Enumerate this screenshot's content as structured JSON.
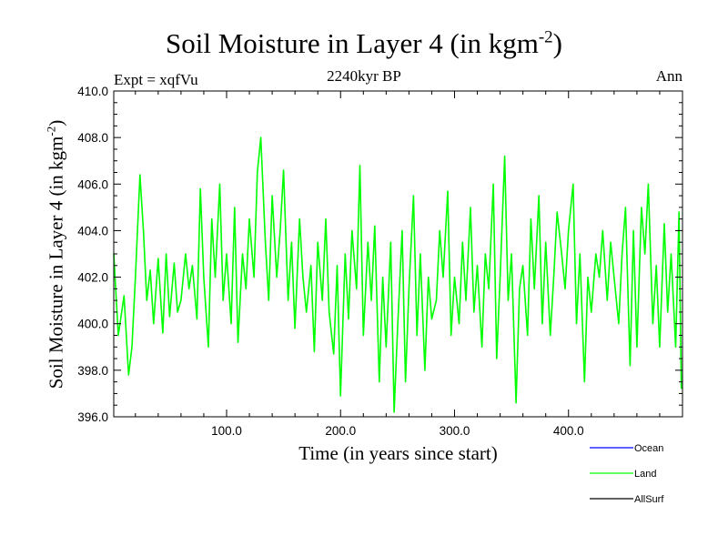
{
  "chart_data": {
    "type": "line",
    "title_main": "Soil Moisture in Layer 4 (in kgm",
    "title_sup": "-2",
    "title_close": ")",
    "subtitle": "2240kyr BP",
    "left_label": "Expt = xqfVu",
    "right_label": "Ann",
    "xlabel": "Time (in years since start)",
    "ylabel_main": "Soil Moisture in Layer 4 (in kgm",
    "ylabel_sup": "-2",
    "ylabel_close": ")",
    "xlim": [
      1,
      500
    ],
    "ylim": [
      396.0,
      410.0
    ],
    "xticks": [
      100,
      200,
      300,
      400
    ],
    "xtick_labels": [
      "100.0",
      "200.0",
      "300.0",
      "400.0"
    ],
    "yticks": [
      396,
      398,
      400,
      402,
      404,
      406,
      408,
      410
    ],
    "ytick_labels": [
      "396.0",
      "398.0",
      "400.0",
      "402.0",
      "404.0",
      "406.0",
      "408.0",
      "410.0"
    ],
    "legend": [
      {
        "name": "Ocean",
        "color": "#0000ff"
      },
      {
        "name": "Land",
        "color": "#00ff00"
      },
      {
        "name": "AllSurf",
        "color": "#000000"
      }
    ],
    "series": [
      {
        "name": "Land",
        "color": "#00ff00",
        "x": [
          1,
          5,
          10,
          14,
          17,
          20,
          24,
          27,
          30,
          33,
          36,
          40,
          44,
          47,
          50,
          54,
          57,
          60,
          64,
          67,
          70,
          74,
          77,
          80,
          84,
          87,
          90,
          94,
          97,
          100,
          104,
          107,
          110,
          114,
          117,
          120,
          124,
          127,
          130,
          134,
          137,
          140,
          144,
          147,
          150,
          154,
          157,
          160,
          164,
          167,
          170,
          174,
          177,
          180,
          184,
          187,
          190,
          194,
          197,
          200,
          204,
          207,
          210,
          214,
          217,
          220,
          224,
          227,
          230,
          234,
          237,
          240,
          244,
          247,
          250,
          254,
          257,
          260,
          264,
          267,
          270,
          274,
          277,
          280,
          284,
          287,
          290,
          294,
          297,
          300,
          304,
          307,
          310,
          314,
          317,
          320,
          324,
          327,
          330,
          334,
          337,
          340,
          344,
          347,
          350,
          354,
          357,
          360,
          364,
          367,
          370,
          374,
          377,
          380,
          384,
          387,
          390,
          394,
          397,
          400,
          404,
          407,
          410,
          414,
          417,
          420,
          424,
          427,
          430,
          434,
          437,
          440,
          444,
          447,
          450,
          454,
          457,
          460,
          464,
          467,
          470,
          474,
          477,
          480,
          484,
          487,
          490,
          494,
          497,
          499
        ],
        "values": [
          403.0,
          399.5,
          401.2,
          397.8,
          399.0,
          402.0,
          406.4,
          404.0,
          401.0,
          402.3,
          400.0,
          402.8,
          399.6,
          403.0,
          400.3,
          402.6,
          400.5,
          401.0,
          403.0,
          401.5,
          402.5,
          400.2,
          405.8,
          402.0,
          399.0,
          404.5,
          402.0,
          406.0,
          401.0,
          403.0,
          400.0,
          405.0,
          399.2,
          403.0,
          401.5,
          404.5,
          402.0,
          406.5,
          408.0,
          403.5,
          401.0,
          405.5,
          402.0,
          404.0,
          406.6,
          401.0,
          403.5,
          399.8,
          404.5,
          402.0,
          400.5,
          402.5,
          398.8,
          403.5,
          401.0,
          404.5,
          400.5,
          398.7,
          402.5,
          396.9,
          403.0,
          400.2,
          404.0,
          401.5,
          406.8,
          399.5,
          403.5,
          401.0,
          404.2,
          397.5,
          402.0,
          399.0,
          403.5,
          396.2,
          399.8,
          404.0,
          397.5,
          401.5,
          405.5,
          399.5,
          403.0,
          398.0,
          402.0,
          400.2,
          401.0,
          404.0,
          402.0,
          405.7,
          399.5,
          402.0,
          400.0,
          403.5,
          401.0,
          405.0,
          400.5,
          402.5,
          399.0,
          403.0,
          401.5,
          406.0,
          398.5,
          402.0,
          407.2,
          401.0,
          403.0,
          396.6,
          401.5,
          402.5,
          399.5,
          404.5,
          401.5,
          405.5,
          400.0,
          403.5,
          399.5,
          402.0,
          404.8,
          403.0,
          401.5,
          404.0,
          406.0,
          400.0,
          403.0,
          397.5,
          402.0,
          400.5,
          403.0,
          402.0,
          404.0,
          401.0,
          403.5,
          402.0,
          400.0,
          403.0,
          405.0,
          398.2,
          404.0,
          399.0,
          405.0,
          403.0,
          406.0,
          400.0,
          402.5,
          399.0,
          404.3,
          400.5,
          403.0,
          399.0,
          404.8,
          397.2
        ]
      }
    ]
  }
}
